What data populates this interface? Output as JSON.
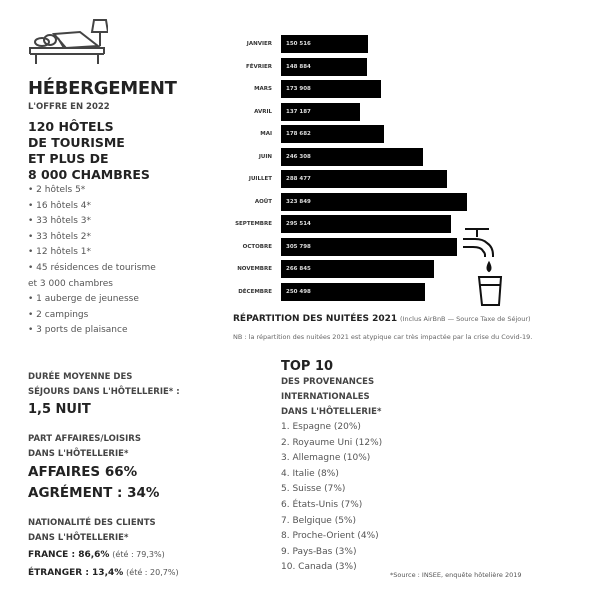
{
  "hebergement": {
    "title": "HÉBERGEMENT",
    "subtitle": "L'OFFRE EN 2022",
    "headline": [
      "120 HÔTELS",
      "DE TOURISME",
      "ET PLUS DE",
      "8 000 CHAMBRES"
    ],
    "items": [
      "• 2 hôtels 5*",
      "• 16 hôtels 4*",
      "• 33 hôtels 3*",
      "• 33 hôtels 2*",
      "• 12 hôtels 1*",
      "• 45 résidences de tourisme",
      "et 3 000 chambres",
      "• 1 auberge de jeunesse",
      "• 2 campings",
      "• 3 ports de plaisance"
    ]
  },
  "chart_data": {
    "type": "bar",
    "orientation": "horizontal",
    "categories": [
      "JANVIER",
      "FÉVRIER",
      "MARS",
      "AVRIL",
      "MAI",
      "JUIN",
      "JUILLET",
      "AOÛT",
      "SEPTEMBRE",
      "OCTOBRE",
      "NOVEMBRE",
      "DÉCEMBRE"
    ],
    "values": [
      150516,
      148884,
      173908,
      137187,
      178682,
      246308,
      288477,
      323849,
      295514,
      305798,
      266845,
      250498
    ],
    "value_labels": [
      "150 516",
      "148 884",
      "173 908",
      "137 187",
      "178 682",
      "246 308",
      "288 477",
      "323 849",
      "295 514",
      "305 798",
      "266 845",
      "250 498"
    ],
    "title": "RÉPARTITION DES NUITÉES 2021",
    "title_note": "(Inclus AirBnB — Source Taxe de Séjour)",
    "note": "NB : la répartition des nuitées 2021 est atypique car très impactée par la crise du Covid-19.",
    "bar_color": "#000000",
    "grid": false
  },
  "duree": {
    "label": [
      "DURÉE MOYENNE DES",
      "SÉJOURS DANS L'HÔTELLERIE* :"
    ],
    "value": "1,5 NUIT"
  },
  "part": {
    "label": [
      "PART AFFAIRES/LOISIRS",
      "DANS L'HÔTELLERIE*"
    ],
    "affaires": "AFFAIRES 66%",
    "agrement": "AGRÉMENT : 34%"
  },
  "nationalite": {
    "label": [
      "NATIONALITÉ DES CLIENTS",
      "DANS L'HÔTELLERIE*"
    ],
    "france": "FRANCE : 86,6%",
    "france_ete": "(été : 79,3%)",
    "etranger": "ÉTRANGER : 13,4%",
    "etranger_ete": "(été : 20,7%)"
  },
  "top10": {
    "title": "TOP 10",
    "subtitle": [
      "DES PROVENANCES",
      "INTERNATIONALES",
      "DANS L'HÔTELLERIE*"
    ],
    "items": [
      "1. Espagne (20%)",
      "2. Royaume Uni (12%)",
      "3. Allemagne (10%)",
      "4. Italie (8%)",
      "5. Suisse (7%)",
      "6. États-Unis (7%)",
      "7. Belgique (5%)",
      "8. Proche-Orient (4%)",
      "9. Pays-Bas (3%)",
      "10. Canada (3%)"
    ],
    "source": "*Source : INSEE, enquête hôtelière 2019"
  }
}
